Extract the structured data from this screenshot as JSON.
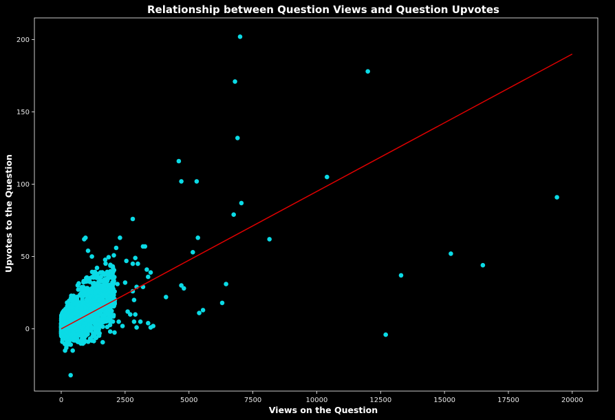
{
  "chart_data": {
    "type": "scatter",
    "title": "Relationship between Question Views and Question Upvotes",
    "xlabel": "Views on the Question",
    "ylabel": "Upvotes to the Question",
    "xlim": [
      -1050,
      21000
    ],
    "ylim": [
      -43,
      215
    ],
    "xticks": [
      0,
      2500,
      5000,
      7500,
      10000,
      12500,
      15000,
      17500,
      20000
    ],
    "yticks": [
      0,
      50,
      100,
      150,
      200
    ],
    "grid": false,
    "colors": {
      "background": "#000000",
      "axes_frame": "#ffffff",
      "points": "#0bdbe6",
      "regression": "#e00000"
    },
    "regression_line": {
      "x": [
        0,
        20000
      ],
      "y": [
        0,
        190
      ]
    },
    "points": [
      {
        "x": 7000,
        "y": 202
      },
      {
        "x": 12000,
        "y": 178
      },
      {
        "x": 6800,
        "y": 171
      },
      {
        "x": 6900,
        "y": 132
      },
      {
        "x": 4600,
        "y": 116
      },
      {
        "x": 10400,
        "y": 105
      },
      {
        "x": 4700,
        "y": 102
      },
      {
        "x": 5300,
        "y": 102
      },
      {
        "x": 19400,
        "y": 91
      },
      {
        "x": 7050,
        "y": 87
      },
      {
        "x": 6750,
        "y": 79
      },
      {
        "x": 2800,
        "y": 76
      },
      {
        "x": 900,
        "y": 62
      },
      {
        "x": 950,
        "y": 63
      },
      {
        "x": 2300,
        "y": 63
      },
      {
        "x": 5350,
        "y": 63
      },
      {
        "x": 8150,
        "y": 62
      },
      {
        "x": 3200,
        "y": 57
      },
      {
        "x": 3280,
        "y": 57
      },
      {
        "x": 2150,
        "y": 56
      },
      {
        "x": 1050,
        "y": 54
      },
      {
        "x": 5150,
        "y": 53
      },
      {
        "x": 15250,
        "y": 52
      },
      {
        "x": 1200,
        "y": 50
      },
      {
        "x": 2900,
        "y": 49
      },
      {
        "x": 2550,
        "y": 47
      },
      {
        "x": 2800,
        "y": 45
      },
      {
        "x": 3000,
        "y": 45
      },
      {
        "x": 16500,
        "y": 44
      },
      {
        "x": 3350,
        "y": 41
      },
      {
        "x": 3500,
        "y": 39
      },
      {
        "x": 1600,
        "y": 39
      },
      {
        "x": 13300,
        "y": 37
      },
      {
        "x": 3400,
        "y": 36
      },
      {
        "x": 1800,
        "y": 35
      },
      {
        "x": 2200,
        "y": 31
      },
      {
        "x": 2500,
        "y": 32
      },
      {
        "x": 6450,
        "y": 31
      },
      {
        "x": 4700,
        "y": 30
      },
      {
        "x": 4800,
        "y": 28
      },
      {
        "x": 3200,
        "y": 29
      },
      {
        "x": 2800,
        "y": 26
      },
      {
        "x": 2950,
        "y": 29
      },
      {
        "x": 4100,
        "y": 22
      },
      {
        "x": 2850,
        "y": 20
      },
      {
        "x": 6300,
        "y": 18
      },
      {
        "x": 5550,
        "y": 13
      },
      {
        "x": 5400,
        "y": 11
      },
      {
        "x": 2600,
        "y": 12
      },
      {
        "x": 2700,
        "y": 10
      },
      {
        "x": 2900,
        "y": 10
      },
      {
        "x": 2850,
        "y": 5
      },
      {
        "x": 3100,
        "y": 5
      },
      {
        "x": 3400,
        "y": 4
      },
      {
        "x": 3600,
        "y": 2
      },
      {
        "x": 3500,
        "y": 1
      },
      {
        "x": 2950,
        "y": 1
      },
      {
        "x": 2250,
        "y": 5
      },
      {
        "x": 2400,
        "y": 2
      },
      {
        "x": 12700,
        "y": -4
      },
      {
        "x": 370,
        "y": -32
      },
      {
        "x": 200,
        "y": -13
      },
      {
        "x": 150,
        "y": -15
      },
      {
        "x": 450,
        "y": -15
      },
      {
        "x": 900,
        "y": -8
      },
      {
        "x": 650,
        "y": -9
      },
      {
        "x": 1500,
        "y": -3
      }
    ],
    "cluster": {
      "x_max": 2100,
      "count": 1400,
      "slope": 0.011,
      "spread": 11
    }
  }
}
